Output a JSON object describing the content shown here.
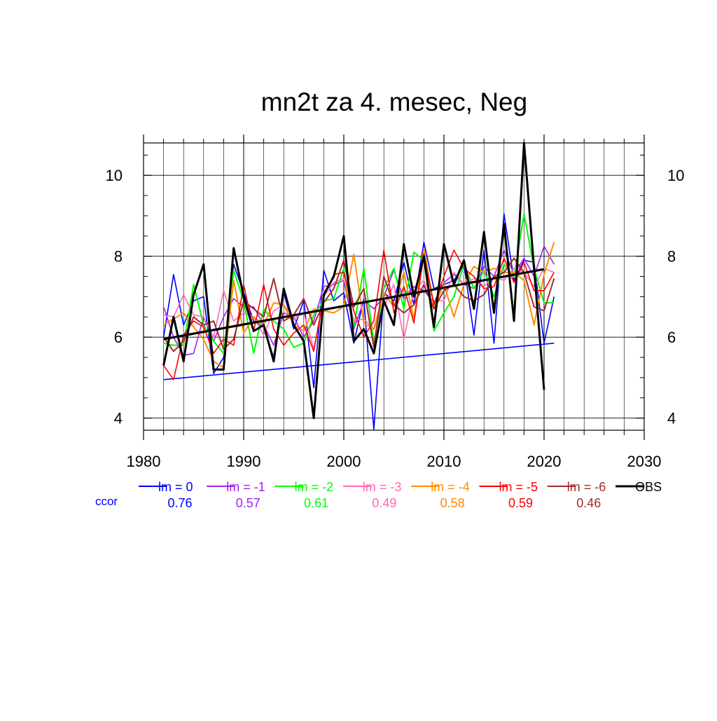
{
  "chart_data": {
    "type": "line",
    "title": "mn2t za 4. mesec, Neg",
    "xlabel": "",
    "ylabel": "",
    "xlim": [
      1980,
      2030
    ],
    "ylim": [
      3.7,
      10.8
    ],
    "x_ticks": [
      1980,
      1990,
      2000,
      2010,
      2020,
      2030
    ],
    "y_ticks": [
      4,
      6,
      8,
      10
    ],
    "grid": true,
    "legend_position": "bottom",
    "ccor_label": "ccor",
    "x": [
      1982,
      1983,
      1984,
      1985,
      1986,
      1987,
      1988,
      1989,
      1990,
      1991,
      1992,
      1993,
      1994,
      1995,
      1996,
      1997,
      1998,
      1999,
      2000,
      2001,
      2002,
      2003,
      2004,
      2005,
      2006,
      2007,
      2008,
      2009,
      2010,
      2011,
      2012,
      2013,
      2014,
      2015,
      2016,
      2017,
      2018,
      2019,
      2020,
      2021
    ],
    "series": [
      {
        "name": "lm = 0",
        "color": "#0000ff",
        "width": 1.6,
        "ccor": "0.76",
        "values": [
          6.0,
          7.55,
          6.3,
          6.9,
          7.0,
          5.1,
          5.5,
          7.8,
          7.1,
          6.4,
          6.25,
          5.5,
          7.1,
          6.2,
          6.9,
          4.75,
          7.65,
          6.9,
          7.1,
          5.85,
          6.95,
          3.72,
          7.1,
          6.9,
          7.85,
          6.8,
          8.35,
          7.2,
          7.3,
          7.4,
          7.8,
          6.05,
          8.15,
          5.85,
          9.05,
          7.4,
          7.9,
          7.85,
          5.85,
          7.0
        ]
      },
      {
        "name": "lm = -1",
        "color": "#a020f0",
        "width": 1.6,
        "ccor": "0.57",
        "values": [
          6.75,
          6.0,
          5.55,
          5.6,
          6.5,
          5.9,
          6.5,
          6.95,
          6.75,
          6.75,
          6.3,
          5.8,
          6.6,
          6.5,
          6.0,
          6.4,
          7.25,
          7.3,
          7.4,
          6.2,
          6.9,
          6.7,
          7.0,
          7.65,
          6.95,
          7.25,
          7.15,
          6.85,
          7.35,
          7.55,
          7.3,
          7.2,
          7.75,
          7.5,
          8.15,
          7.55,
          7.95,
          7.5,
          8.25,
          7.8
        ]
      },
      {
        "name": "lm = -2",
        "color": "#00ff00",
        "width": 2.0,
        "ccor": "0.61",
        "values": [
          5.85,
          5.8,
          5.8,
          7.3,
          6.3,
          5.9,
          5.6,
          7.65,
          6.9,
          5.6,
          6.7,
          6.4,
          6.2,
          5.75,
          5.85,
          6.55,
          6.9,
          6.95,
          7.7,
          6.25,
          7.7,
          5.85,
          7.2,
          7.7,
          6.7,
          8.1,
          7.9,
          6.15,
          6.6,
          7.0,
          7.8,
          7.2,
          7.65,
          7.0,
          7.8,
          7.5,
          9.05,
          7.7,
          6.85,
          6.85
        ]
      },
      {
        "name": "lm = -3",
        "color": "#ff69b4",
        "width": 1.6,
        "ccor": "0.49",
        "values": [
          6.55,
          6.5,
          7.05,
          6.55,
          6.5,
          6.0,
          7.15,
          6.4,
          6.6,
          6.5,
          6.05,
          6.65,
          6.8,
          6.45,
          6.6,
          5.7,
          7.0,
          7.35,
          7.45,
          6.4,
          6.45,
          6.2,
          6.75,
          7.3,
          5.95,
          7.15,
          7.4,
          6.9,
          6.9,
          7.6,
          7.3,
          7.45,
          7.25,
          7.5,
          7.4,
          7.7,
          7.6,
          7.25,
          7.7,
          7.6
        ]
      },
      {
        "name": "lm = -4",
        "color": "#ff8c00",
        "width": 2.0,
        "ccor": "0.58",
        "values": [
          6.3,
          6.45,
          6.6,
          6.25,
          5.95,
          5.4,
          5.25,
          7.4,
          6.1,
          6.5,
          6.3,
          6.85,
          6.8,
          6.3,
          6.15,
          6.7,
          6.65,
          6.6,
          6.75,
          8.05,
          6.35,
          6.2,
          7.1,
          6.75,
          7.6,
          6.45,
          8.2,
          6.75,
          7.3,
          6.5,
          7.3,
          7.75,
          7.6,
          7.7,
          7.6,
          7.6,
          7.4,
          6.3,
          7.55,
          8.35
        ]
      },
      {
        "name": "lm = -5",
        "color": "#ff0000",
        "width": 1.6,
        "ccor": "0.59",
        "values": [
          5.3,
          4.95,
          6.05,
          6.4,
          6.25,
          5.6,
          5.95,
          5.8,
          7.3,
          6.15,
          7.3,
          6.2,
          5.8,
          6.1,
          6.3,
          5.65,
          7.0,
          7.55,
          7.6,
          6.65,
          6.0,
          6.4,
          8.15,
          6.6,
          7.25,
          6.35,
          8.05,
          6.8,
          7.5,
          8.15,
          7.7,
          7.5,
          7.2,
          7.25,
          7.95,
          7.35,
          7.85,
          7.15,
          7.15,
          7.6
        ]
      },
      {
        "name": "lm = -6",
        "color": "#a52a2a",
        "width": 2.0,
        "ccor": "0.46",
        "values": [
          6.0,
          5.65,
          5.9,
          6.5,
          6.3,
          6.4,
          5.7,
          5.95,
          6.9,
          6.7,
          6.5,
          7.45,
          6.4,
          6.55,
          6.95,
          6.3,
          6.85,
          7.2,
          7.9,
          6.75,
          7.2,
          5.75,
          7.5,
          6.8,
          6.6,
          6.8,
          7.3,
          6.7,
          7.15,
          7.3,
          7.0,
          6.9,
          7.05,
          7.5,
          7.6,
          7.95,
          7.6,
          6.75,
          6.65,
          7.45
        ]
      },
      {
        "name": "OBS",
        "color": "#000000",
        "width": 3.0,
        "ccor": "",
        "values": [
          5.3,
          6.5,
          5.4,
          7.05,
          7.8,
          5.2,
          5.2,
          8.2,
          7.0,
          6.15,
          6.3,
          5.4,
          7.2,
          6.3,
          5.9,
          4.0,
          7.05,
          7.5,
          8.5,
          5.9,
          6.2,
          5.6,
          6.9,
          6.3,
          8.3,
          7.0,
          8.0,
          6.25,
          8.3,
          7.3,
          7.9,
          6.7,
          8.6,
          6.6,
          8.8,
          6.4,
          10.8,
          7.7,
          4.7,
          null
        ]
      }
    ],
    "trend_lines": [
      {
        "name": "lm = 0 trend",
        "color": "#0000ff",
        "width": 1.6,
        "x": [
          1982,
          2021
        ],
        "y": [
          4.95,
          5.85
        ]
      },
      {
        "name": "OBS trend",
        "color": "#000000",
        "width": 3.0,
        "x": [
          1982,
          2020
        ],
        "y": [
          5.95,
          7.68
        ]
      }
    ]
  }
}
